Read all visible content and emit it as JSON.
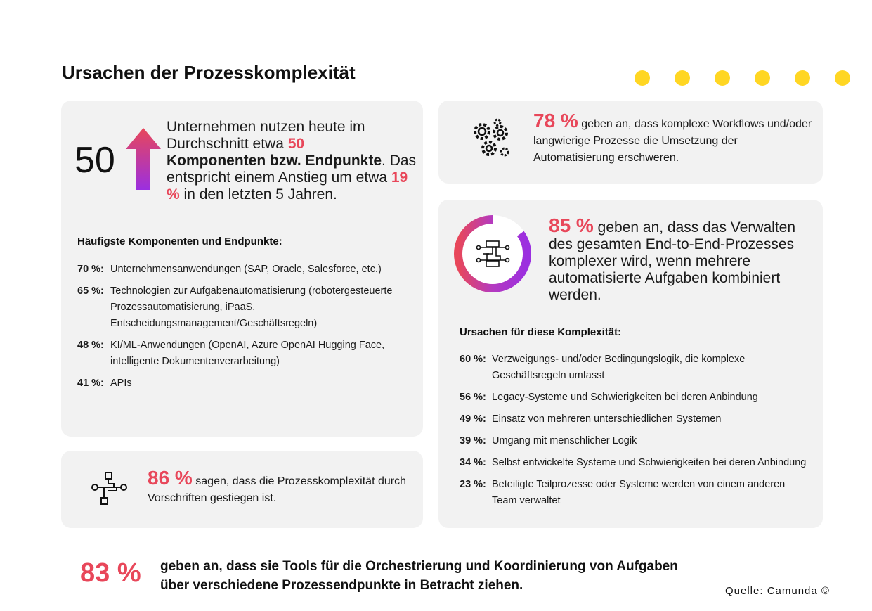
{
  "title": "Ursachen der Prozesskomplexität",
  "colors": {
    "accent": "#E8475A",
    "dots": "#FFD623",
    "card": "#f2f2f2",
    "gradient": [
      "#E8475A",
      "#9B2FE0"
    ]
  },
  "components": {
    "big_number": "50",
    "lead_part1": "Unternehmen nutzen heute im Durchschnitt etwa ",
    "lead_pct1": "50",
    "lead_bold": "Komponenten bzw. Endpunkte",
    "lead_part2": ". Das entspricht einem Anstieg um etwa ",
    "lead_pct2": "19 %",
    "lead_part3": " in den letzten 5 Jahren.",
    "heading": "Häufigste Komponenten und Endpunkte:",
    "items": [
      {
        "pct": "70 %:",
        "text": "Unternehmensanwendungen (SAP, Oracle, Salesforce, etc.)"
      },
      {
        "pct": "65 %:",
        "text": "Technologien zur Aufgabenautomatisierung (robotergesteuerte Prozessautomatisierung, iPaaS, Entscheidungsmanagement/Geschäftsregeln)"
      },
      {
        "pct": "48 %:",
        "text": "KI/ML-Anwendungen (OpenAI, Azure OpenAI Hugging Face, intelligente Dokumentenverarbeitung)"
      },
      {
        "pct": "41 %:",
        "text": "APIs"
      }
    ]
  },
  "regulations": {
    "pct": "86 %",
    "text": " sagen, dass die Prozesskomplexität durch Vorschriften gestiegen ist.",
    "icon": "process-flow-icon"
  },
  "workflows": {
    "pct": "78 %",
    "text": " geben an, dass komplexe Workflows und/oder langwierige Prozesse die Umsetzung der Automatisierung erschweren.",
    "icon": "gears-icon"
  },
  "end_to_end": {
    "pct": "85 %",
    "value": 85,
    "text": " geben an, dass das Verwalten des gesamten End-to-End-Prozesses komplexer wird, wenn mehrere automatisierte Aufgaben kombiniert werden.",
    "heading": "Ursachen für diese Komplexität:",
    "items": [
      {
        "pct": "60 %:",
        "text": "Verzweigungs- und/oder Bedingungslogik, die komplexe Geschäftsregeln umfasst"
      },
      {
        "pct": "56 %:",
        "text": "Legacy-Systeme und Schwierigkeiten bei deren Anbindung"
      },
      {
        "pct": "49 %:",
        "text": "Einsatz von mehreren unterschiedlichen Systemen"
      },
      {
        "pct": "39 %:",
        "text": "Umgang mit menschlicher Logik"
      },
      {
        "pct": "34 %:",
        "text": "Selbst entwickelte Systeme und Schwierigkeiten bei deren Anbindung"
      },
      {
        "pct": "23 %:",
        "text": "Beteiligte Teilprozesse oder Systeme werden von einem anderen Team verwaltet"
      }
    ]
  },
  "orchestration": {
    "pct": "83 %",
    "text": "geben an, dass sie Tools für die Orchestrierung und Koordinierung von Aufgaben über verschiedene Prozessendpunkte in Betracht ziehen."
  },
  "source": "Quelle: Camunda ©"
}
